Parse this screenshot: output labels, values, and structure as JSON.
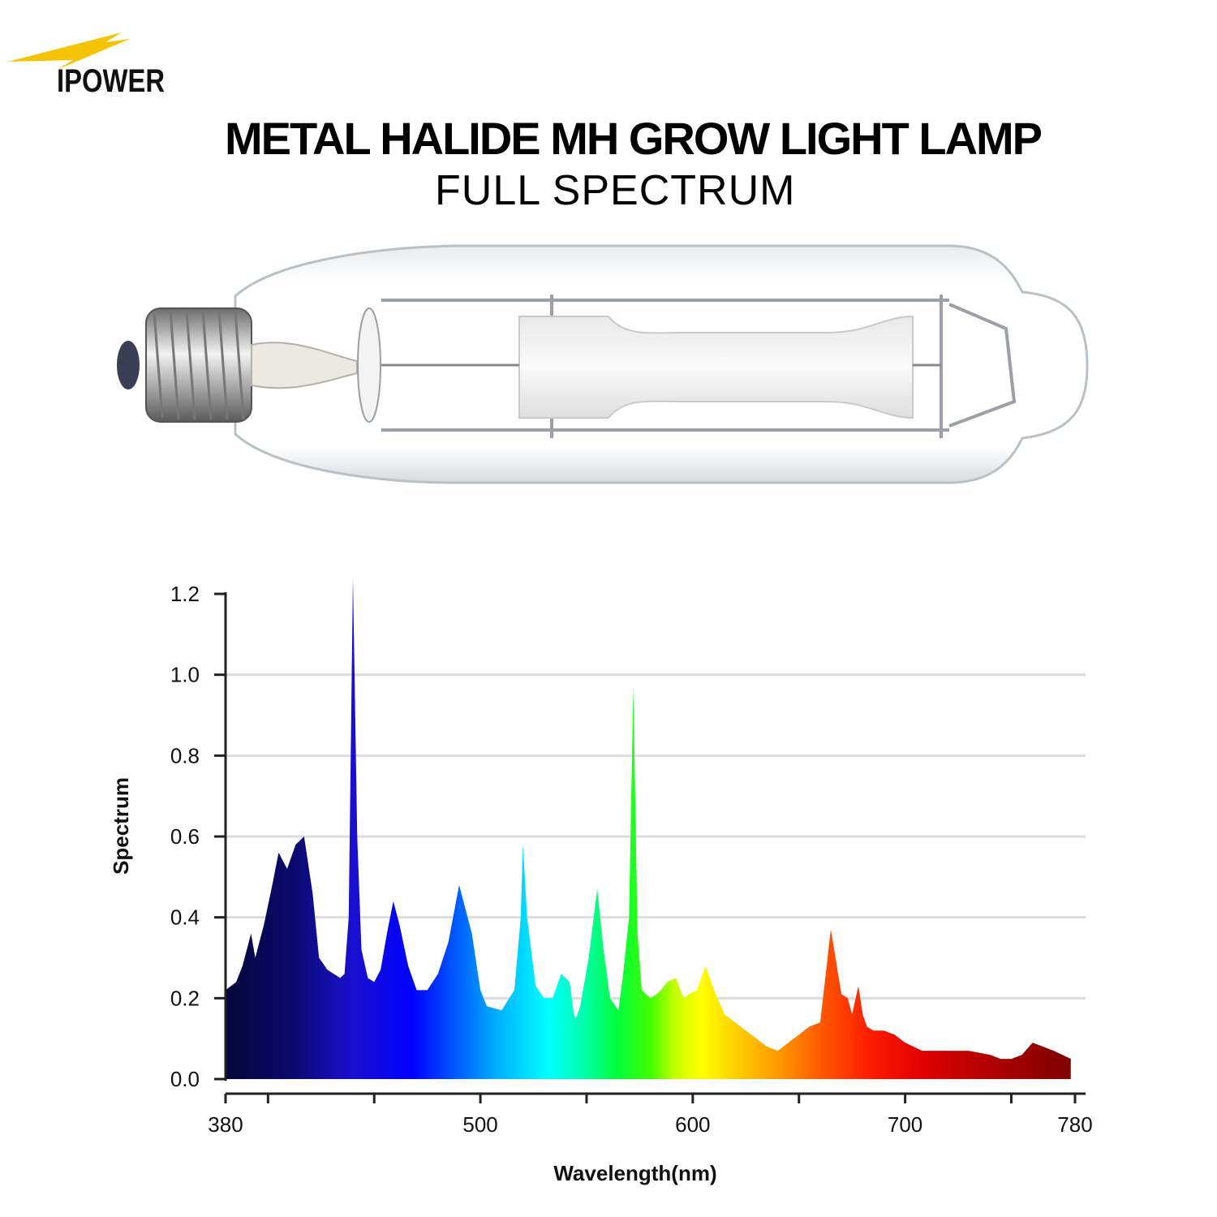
{
  "brand": {
    "logo_text": "IPOWER"
  },
  "header": {
    "title": "METAL HALIDE MH GROW LIGHT LAMP",
    "subtitle": "FULL SPECTRUM"
  },
  "product_image": {
    "icon": "metal-halide-bulb-icon"
  },
  "chart_data": {
    "type": "area",
    "xlabel": "Wavelength(nm)",
    "ylabel": "Spectrum",
    "xlim": [
      380,
      780
    ],
    "ylim": [
      0,
      1.2
    ],
    "x_ticks": [
      380,
      500,
      600,
      700,
      780
    ],
    "y_ticks": [
      "0.0",
      "0.2",
      "0.4",
      "0.6",
      "0.8",
      "1.0",
      "1.2"
    ],
    "grid": true,
    "fill": "wavelength-colour gradient",
    "series": [
      {
        "x": [
          380,
          385,
          388,
          391,
          392,
          394,
          398,
          402,
          405,
          409,
          413,
          417,
          421,
          424,
          428,
          431,
          434,
          436,
          438,
          440,
          442,
          444,
          447,
          450,
          453,
          456,
          459,
          462,
          466,
          470,
          475,
          480,
          485,
          490,
          496,
          500,
          503,
          510,
          516,
          519,
          520,
          522,
          526,
          530,
          534,
          538,
          542,
          544,
          545,
          547,
          551,
          555,
          558,
          561,
          565,
          567,
          570,
          572,
          574,
          576,
          580,
          583,
          585,
          588,
          592,
          595,
          596,
          598,
          602,
          606,
          610,
          615,
          620,
          625,
          630,
          635,
          640,
          645,
          650,
          655,
          660,
          665,
          670,
          673,
          675,
          678,
          680,
          682,
          685,
          690,
          695,
          700,
          704,
          708,
          712,
          720,
          730,
          740,
          745,
          750,
          755,
          760,
          770,
          778
        ],
        "y": [
          0.22,
          0.24,
          0.28,
          0.34,
          0.36,
          0.3,
          0.38,
          0.48,
          0.56,
          0.52,
          0.58,
          0.6,
          0.46,
          0.3,
          0.27,
          0.26,
          0.25,
          0.26,
          0.4,
          1.24,
          0.6,
          0.32,
          0.25,
          0.24,
          0.27,
          0.36,
          0.44,
          0.38,
          0.28,
          0.22,
          0.22,
          0.26,
          0.34,
          0.48,
          0.36,
          0.22,
          0.18,
          0.17,
          0.22,
          0.4,
          0.58,
          0.4,
          0.23,
          0.2,
          0.2,
          0.26,
          0.24,
          0.16,
          0.15,
          0.18,
          0.3,
          0.47,
          0.32,
          0.2,
          0.17,
          0.25,
          0.4,
          0.97,
          0.36,
          0.22,
          0.2,
          0.21,
          0.22,
          0.24,
          0.25,
          0.21,
          0.2,
          0.21,
          0.22,
          0.28,
          0.22,
          0.16,
          0.14,
          0.12,
          0.1,
          0.08,
          0.07,
          0.09,
          0.11,
          0.13,
          0.14,
          0.37,
          0.21,
          0.2,
          0.16,
          0.23,
          0.16,
          0.13,
          0.12,
          0.12,
          0.11,
          0.09,
          0.08,
          0.07,
          0.07,
          0.07,
          0.07,
          0.06,
          0.05,
          0.05,
          0.06,
          0.09,
          0.07,
          0.05
        ]
      }
    ]
  }
}
